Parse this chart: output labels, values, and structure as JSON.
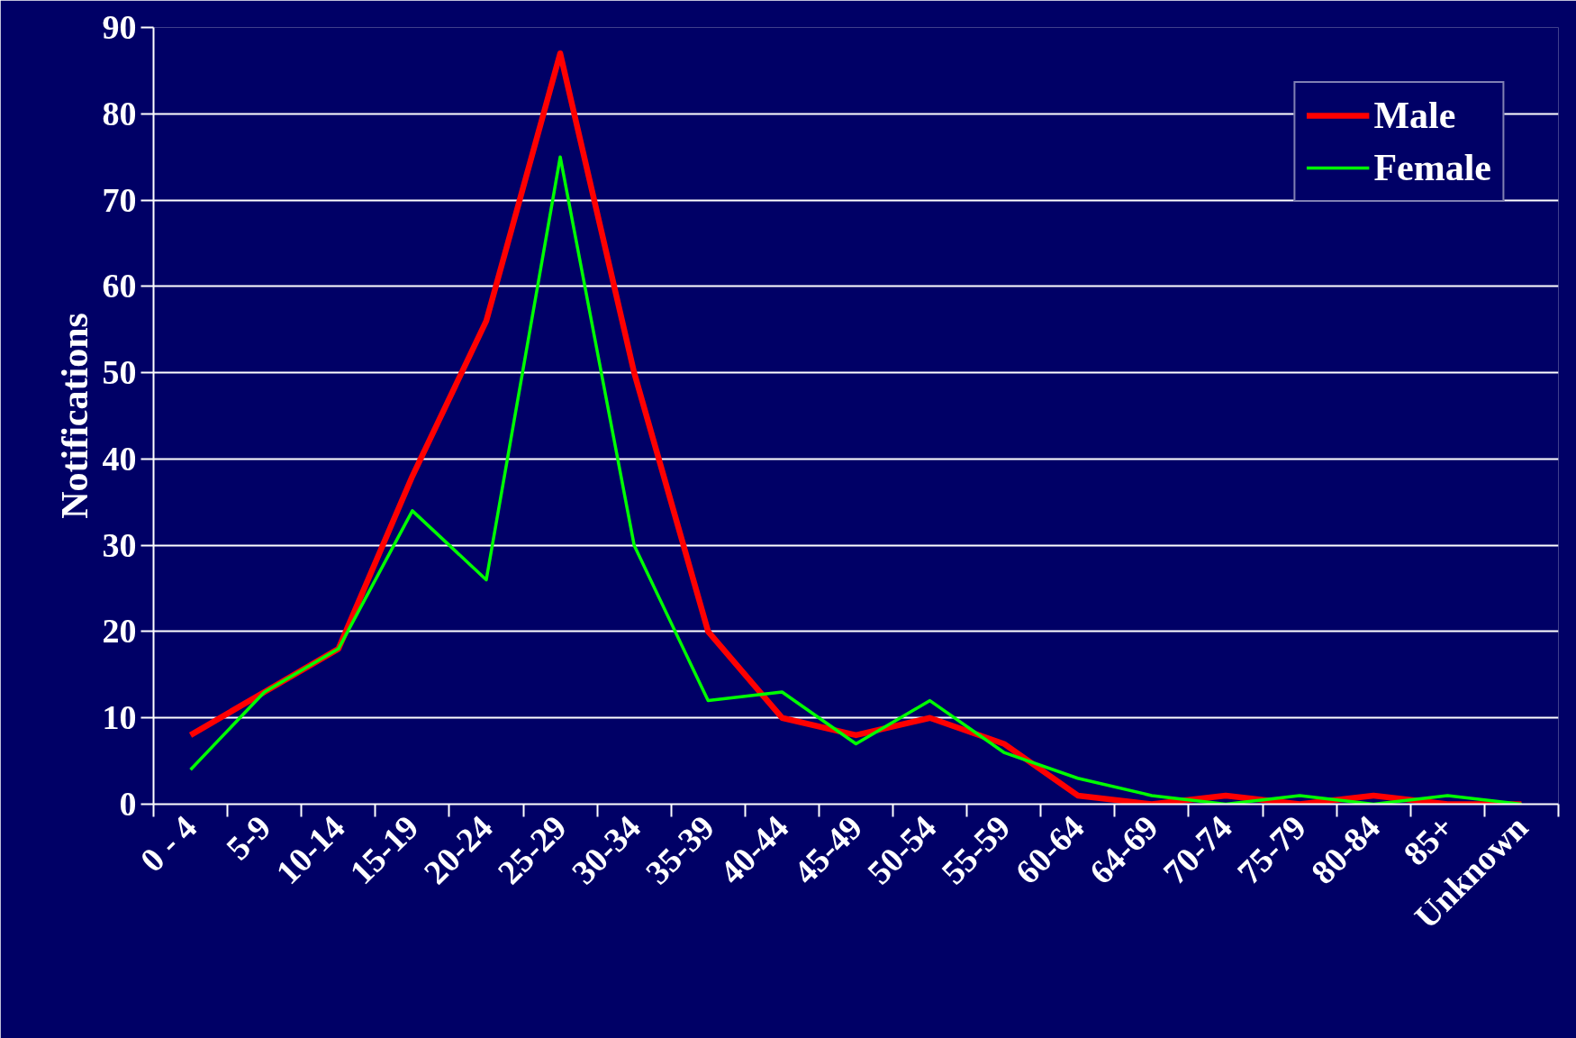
{
  "chart_data": {
    "type": "line",
    "ylabel": "Notifications",
    "categories": [
      "0 - 4",
      "5-9",
      "10-14",
      "15-19",
      "20-24",
      "25-29",
      "30-34",
      "35-39",
      "40-44",
      "45-49",
      "50-54",
      "55-59",
      "60-64",
      "64-69",
      "70-74",
      "75-79",
      "80-84",
      "85+",
      "Unknown"
    ],
    "series": [
      {
        "name": "Male",
        "color": "#ff0000",
        "values": [
          8,
          13,
          18,
          38,
          56,
          87,
          50,
          20,
          10,
          8,
          10,
          7,
          1,
          0,
          1,
          0,
          1,
          0,
          0
        ]
      },
      {
        "name": "Female",
        "color": "#00ff00",
        "values": [
          4,
          13,
          18,
          34,
          26,
          75,
          30,
          12,
          13,
          7,
          12,
          6,
          3,
          1,
          0,
          1,
          0,
          1,
          0
        ]
      }
    ],
    "ylim": [
      0,
      90
    ],
    "yticks": [
      0,
      10,
      20,
      30,
      40,
      50,
      60,
      70,
      80,
      90
    ],
    "grid": "y",
    "legend": "top right",
    "marker": "none",
    "line_style": "solid"
  }
}
